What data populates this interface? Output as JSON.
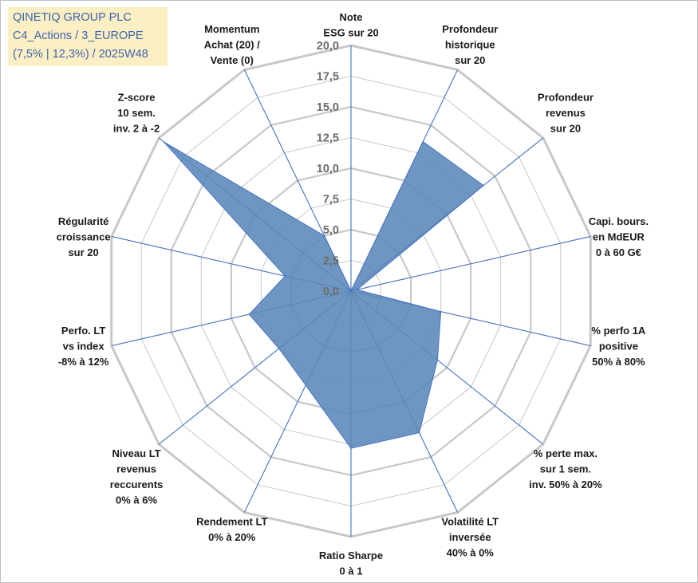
{
  "header": {
    "line1": "QINETIQ GROUP PLC",
    "line2": "C4_Actions / 3_EUROPE",
    "line3": "(7,5% | 12,3%) / 2025W48"
  },
  "colors": {
    "grid": "#c8c8c8",
    "spoke": "#4472c4",
    "fill": "#5b87b8",
    "title_bg": "#fdefc4",
    "title_text": "#3b64ad"
  },
  "chart_data": {
    "type": "radar",
    "rmin": 0,
    "rmax": 20,
    "ticks": [
      0,
      2.5,
      5,
      7.5,
      10,
      12.5,
      15,
      17.5,
      20
    ],
    "tick_labels": [
      "0,0",
      "2,5",
      "5,0",
      "7,5",
      "10,0",
      "12,5",
      "15,0",
      "17,5",
      "20,0"
    ],
    "axes": [
      {
        "label": [
          "Note",
          "ESG sur 20"
        ],
        "value": 0
      },
      {
        "label": [
          "Profondeur",
          "historique",
          "sur 20"
        ],
        "value": 13.5
      },
      {
        "label": [
          "Profondeur",
          "revenus",
          "sur 20"
        ],
        "value": 13.8
      },
      {
        "label": [
          "Capi. bours.",
          "en MdEUR",
          "0 à 60 G€"
        ],
        "value": 0.5
      },
      {
        "label": [
          "% perfo 1A",
          "positive",
          "50% à 80%"
        ],
        "value": 7.5
      },
      {
        "label": [
          "% perte max.",
          "sur 1 sem.",
          "inv. 50% à 20%"
        ],
        "value": 9.0
      },
      {
        "label": [
          "Volatilité LT",
          "inversée",
          "40% à 0%"
        ],
        "value": 12.8
      },
      {
        "label": [
          "Ratio Sharpe",
          "0 à 1"
        ],
        "value": 12.8
      },
      {
        "label": [
          "Rendement LT",
          "0% à 20%"
        ],
        "value": 8.5
      },
      {
        "label": [
          "Niveau LT",
          "revenus",
          "reccurents",
          "0% à 6%"
        ],
        "value": 7.5
      },
      {
        "label": [
          "Perfo. LT",
          "vs index",
          "-8% à 12%"
        ],
        "value": 8.5
      },
      {
        "label": [
          "Régularité",
          "croissance",
          "sur 20"
        ],
        "value": 5.5
      },
      {
        "label": [
          "Z-score",
          "10 sem.",
          "inv. 2 à -2"
        ],
        "value": 19.5
      },
      {
        "label": [
          "Momentum",
          "Achat (20) /",
          "Vente (0)"
        ],
        "value": 5.0
      }
    ]
  }
}
